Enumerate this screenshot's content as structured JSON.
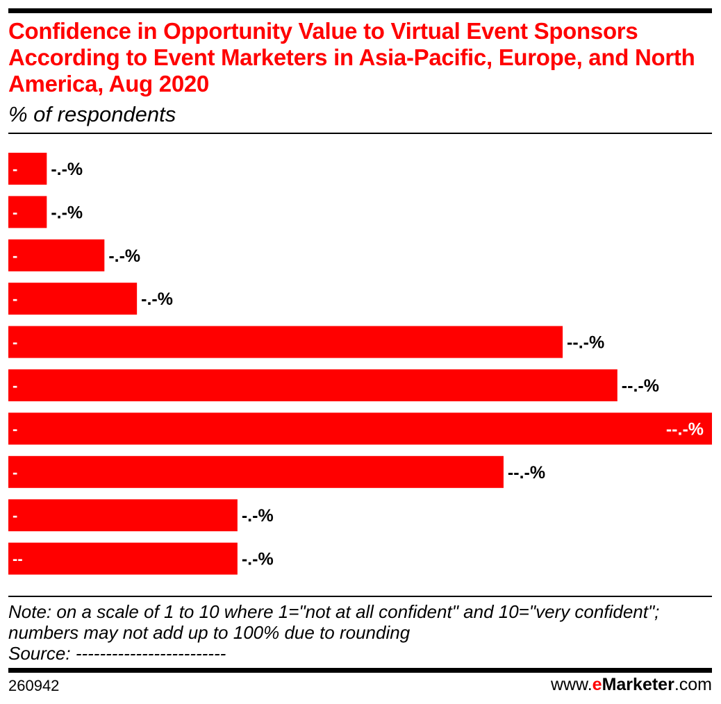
{
  "title": "Confidence in Opportunity Value to Virtual Event Sponsors According to Event Marketers in Asia-Pacific, Europe, and North America, Aug 2020",
  "subtitle": "% of respondents",
  "note": "Note: on a scale of 1 to 10 where 1=\"not at all confident\" and 10=\"very confident\"; numbers may not add up to 100% due to rounding",
  "source": "Source: -------------------------",
  "chart_id": "260942",
  "brand": {
    "prefix": "www.",
    "e": "e",
    "marketer": "Marketer",
    "suffix": ".com"
  },
  "colors": {
    "bar": "#ff0000",
    "title": "#ff0000",
    "text": "#000000"
  },
  "chart_data": {
    "type": "bar",
    "orientation": "horizontal",
    "categories": [
      "-",
      "-",
      "-",
      "-",
      "-",
      "-",
      "-",
      "-",
      "-",
      "--"
    ],
    "values": [
      2.6,
      2.6,
      6.5,
      8.7,
      37.5,
      41.2,
      47.6,
      33.5,
      15.5,
      15.5
    ],
    "labels": [
      "-.-%",
      "-.-%",
      "-.-%",
      "-.-%",
      "--.-%",
      "--.-%",
      "--.-%",
      "--.-%",
      "-.-%",
      "-.-%"
    ],
    "xlim": [
      0,
      47.6
    ],
    "grid": false,
    "legend": "none"
  }
}
